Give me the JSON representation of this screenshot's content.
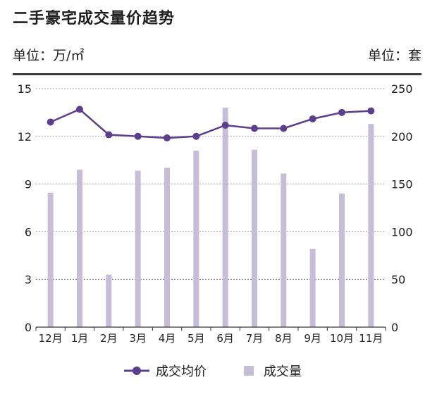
{
  "header": {
    "title": "二手豪宅成交量价趋势",
    "unit_left": "单位：万/㎡",
    "unit_right": "单位：套"
  },
  "chart_data": {
    "type": "bar",
    "title": "二手豪宅成交量价趋势",
    "categories": [
      "12月",
      "1月",
      "2月",
      "3月",
      "4月",
      "5月",
      "6月",
      "7月",
      "8月",
      "9月",
      "10月",
      "11月"
    ],
    "series": [
      {
        "name": "成交均价",
        "type": "line",
        "axis": "left",
        "color": "#5b3f8c",
        "values": [
          12.9,
          13.7,
          12.1,
          12.0,
          11.9,
          12.0,
          12.7,
          12.5,
          12.5,
          13.1,
          13.5,
          13.6
        ]
      },
      {
        "name": "成交量",
        "type": "bar",
        "axis": "right",
        "color": "#c6bdd9",
        "values": [
          141,
          165,
          55,
          164,
          167,
          185,
          230,
          186,
          161,
          82,
          140,
          213
        ]
      }
    ],
    "y_left": {
      "ylim": [
        0,
        15
      ],
      "ticks": [
        0,
        3,
        6,
        9,
        12,
        15
      ]
    },
    "y_right": {
      "ylim": [
        0,
        250
      ],
      "ticks": [
        0,
        50,
        100,
        150,
        200,
        250
      ]
    },
    "grid": true,
    "legend": "bottom-center"
  }
}
